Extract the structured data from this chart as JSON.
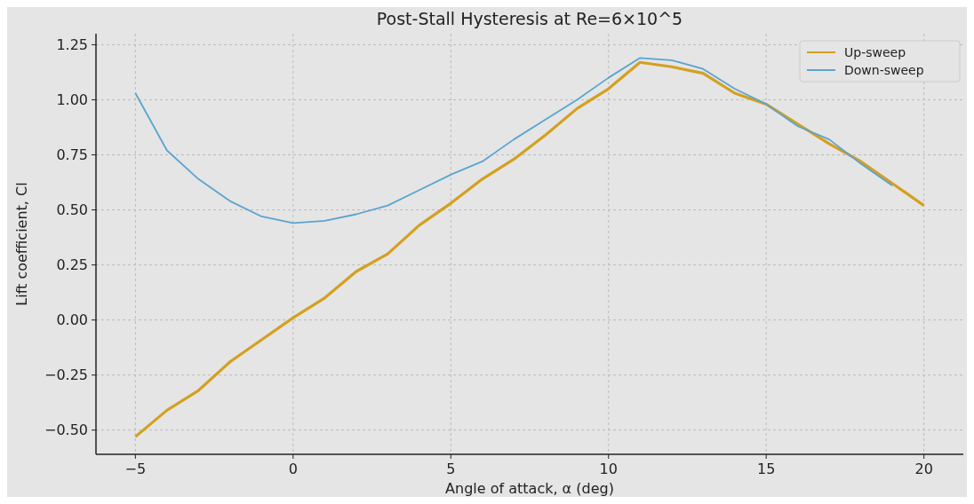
{
  "chart_data": {
    "type": "line",
    "title": "Post-Stall Hysteresis at Re=6×10^5",
    "xlabel": "Angle of attack, α (deg)",
    "ylabel": "Lift coefficient, Cl",
    "xlim": [
      -6.25,
      21.25
    ],
    "ylim": [
      -0.61,
      1.3
    ],
    "xticks": [
      {
        "value": -5,
        "label": "−5"
      },
      0,
      5,
      10,
      15,
      20
    ],
    "yticks": [
      {
        "value": -0.5,
        "label": "−0.50"
      },
      {
        "value": -0.25,
        "label": "−0.25"
      },
      {
        "value": 0,
        "label": "0.00"
      },
      {
        "value": 0.25,
        "label": "0.25"
      },
      {
        "value": 0.5,
        "label": "0.50"
      },
      {
        "value": 0.75,
        "label": "0.75"
      },
      {
        "value": 1,
        "label": "1.00"
      },
      {
        "value": 1.25,
        "label": "1.25"
      }
    ],
    "grid": true,
    "legend": "top right",
    "line_style": "solid",
    "series": [
      {
        "name": "Up-sweep",
        "color": "#d4a020",
        "x": [
          -5,
          -4,
          -3,
          -2,
          -1,
          0,
          1,
          2,
          3,
          4,
          5,
          6,
          7,
          8,
          9,
          10,
          11,
          12,
          13,
          14,
          15,
          16,
          17,
          18,
          19,
          20
        ],
        "values": [
          -0.53,
          -0.41,
          -0.32,
          -0.19,
          -0.09,
          0.01,
          0.1,
          0.22,
          0.3,
          0.43,
          0.53,
          0.64,
          0.73,
          0.84,
          0.96,
          1.05,
          1.17,
          1.15,
          1.12,
          1.03,
          0.98,
          0.89,
          0.8,
          0.72,
          0.62,
          0.52
        ]
      },
      {
        "name": "Down-sweep",
        "color": "#5aa4d0",
        "x": [
          -5,
          -4,
          -3,
          -2,
          -1,
          0,
          1,
          2,
          3,
          4,
          5,
          6,
          7,
          8,
          9,
          10,
          11,
          12,
          13,
          14,
          15,
          16,
          17,
          18,
          19
        ],
        "values": [
          1.03,
          0.77,
          0.64,
          0.54,
          0.47,
          0.44,
          0.45,
          0.48,
          0.52,
          0.59,
          0.66,
          0.72,
          0.82,
          0.91,
          1.0,
          1.1,
          1.19,
          1.18,
          1.14,
          1.05,
          0.98,
          0.88,
          0.82,
          0.71,
          0.61
        ]
      }
    ]
  }
}
